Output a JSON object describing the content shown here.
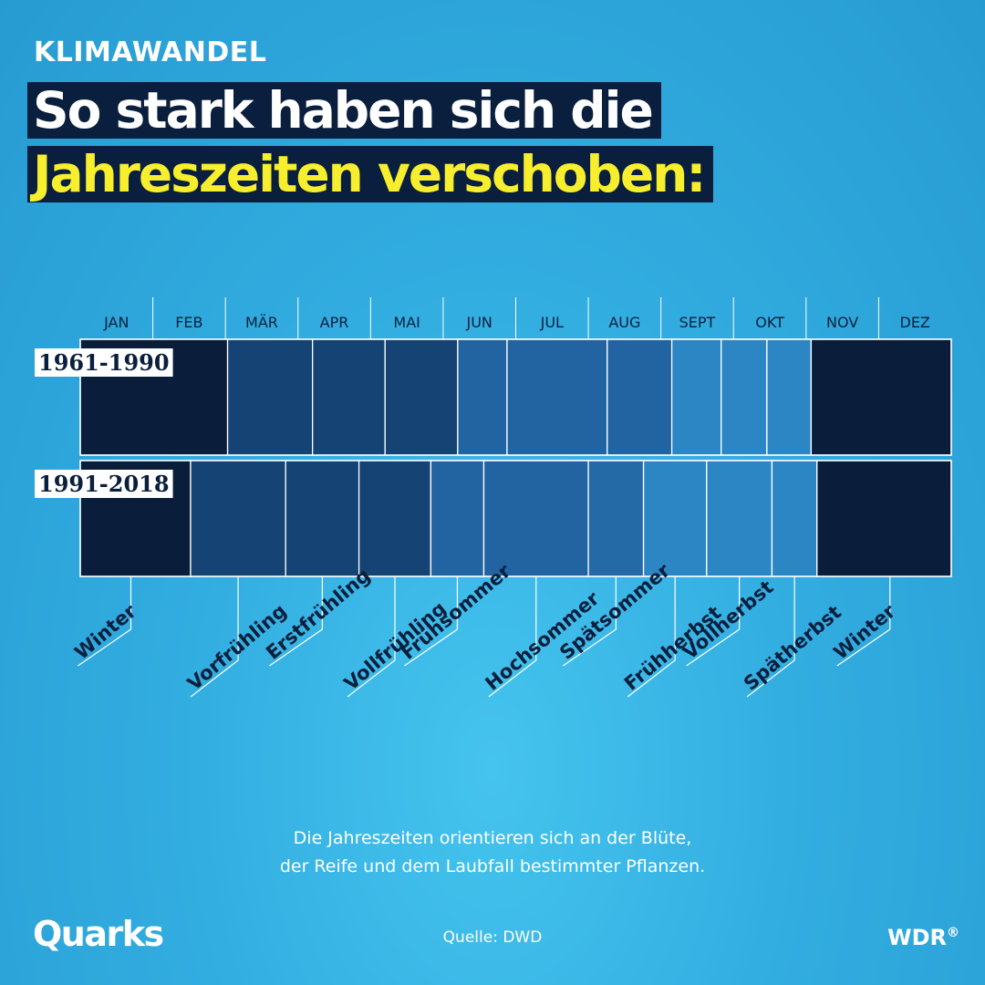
{
  "header": {
    "kicker": "KLIMAWANDEL",
    "title_line1": "So stark haben sich die",
    "title_line2": "Jahreszeiten verschoben:"
  },
  "colors": {
    "winter": "#0a1d3b",
    "early_spring": "#154373",
    "summer": "#2164a1",
    "early_autumn": "#246aa6",
    "late_autumn": "#2c86c4",
    "grid": "#ffffff",
    "season_label": "#0a1f3d"
  },
  "chart_data": {
    "type": "timeline",
    "months": [
      "JAN",
      "FEB",
      "MÄR",
      "APR",
      "MAI",
      "JUN",
      "JUL",
      "AUG",
      "SEPT",
      "OKT",
      "NOV",
      "DEZ"
    ],
    "unit": "month (0 = start of January, 12 = end of December)",
    "periods": [
      {
        "label": "1961-1990",
        "segments": [
          {
            "season": "Winter",
            "start": 0,
            "end": 2.03,
            "tone": "winter"
          },
          {
            "season": "Vorfrühling",
            "start": 2.03,
            "end": 3.2,
            "tone": "early_spring"
          },
          {
            "season": "Erstfrühling",
            "start": 3.2,
            "end": 4.2,
            "tone": "early_spring"
          },
          {
            "season": "Vollfrühling",
            "start": 4.2,
            "end": 5.2,
            "tone": "early_spring"
          },
          {
            "season": "Frühsommer",
            "start": 5.2,
            "end": 5.88,
            "tone": "summer"
          },
          {
            "season": "Hochsommer",
            "start": 5.88,
            "end": 7.26,
            "tone": "summer"
          },
          {
            "season": "Spätsommer",
            "start": 7.26,
            "end": 8.15,
            "tone": "summer"
          },
          {
            "season": "Frühherbst",
            "start": 8.15,
            "end": 8.83,
            "tone": "late_autumn"
          },
          {
            "season": "Vollherbst",
            "start": 8.83,
            "end": 9.46,
            "tone": "late_autumn"
          },
          {
            "season": "Spätherbst",
            "start": 9.46,
            "end": 10.07,
            "tone": "late_autumn"
          },
          {
            "season": "Winter",
            "start": 10.07,
            "end": 12,
            "tone": "winter"
          }
        ]
      },
      {
        "label": "1991-2018",
        "segments": [
          {
            "season": "Winter",
            "start": 0,
            "end": 1.52,
            "tone": "winter"
          },
          {
            "season": "Vorfrühling",
            "start": 1.52,
            "end": 2.83,
            "tone": "early_spring"
          },
          {
            "season": "Erstfrühling",
            "start": 2.83,
            "end": 3.84,
            "tone": "early_spring"
          },
          {
            "season": "Vollfrühling",
            "start": 3.84,
            "end": 4.83,
            "tone": "early_spring"
          },
          {
            "season": "Frühsommer",
            "start": 4.83,
            "end": 5.56,
            "tone": "summer"
          },
          {
            "season": "Hochsommer",
            "start": 5.56,
            "end": 7.0,
            "tone": "summer"
          },
          {
            "season": "Spätsommer",
            "start": 7.0,
            "end": 7.76,
            "tone": "early_autumn"
          },
          {
            "season": "Frühherbst",
            "start": 7.76,
            "end": 8.63,
            "tone": "late_autumn"
          },
          {
            "season": "Vollherbst",
            "start": 8.63,
            "end": 9.53,
            "tone": "late_autumn"
          },
          {
            "season": "Spätherbst",
            "start": 9.53,
            "end": 10.15,
            "tone": "late_autumn"
          },
          {
            "season": "Winter",
            "start": 10.15,
            "end": 12,
            "tone": "winter"
          }
        ]
      }
    ],
    "season_labels": [
      "Winter",
      "Vorfrühling",
      "Erstfrühling",
      "Vollfrühling",
      "Frühsommer",
      "Hochsommer",
      "Spätsommer",
      "Frühherbst",
      "Vollherbst",
      "Spätherbst",
      "Winter"
    ]
  },
  "footnote": {
    "line1": "Die Jahreszeiten orientieren sich an der Blüte,",
    "line2": "der Reife und dem Laubfall bestimmter Pflanzen."
  },
  "footer": {
    "brand_left": "Quarks",
    "source": "Quelle: DWD",
    "brand_right": "WDR",
    "brand_right_mark": "®"
  }
}
